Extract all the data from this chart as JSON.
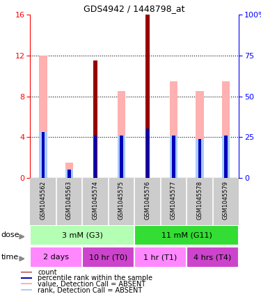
{
  "title": "GDS4942 / 1448798_at",
  "samples": [
    "GSM1045562",
    "GSM1045563",
    "GSM1045574",
    "GSM1045575",
    "GSM1045576",
    "GSM1045577",
    "GSM1045578",
    "GSM1045579"
  ],
  "count_values": [
    0,
    0,
    11.5,
    0,
    16.0,
    0,
    0,
    0
  ],
  "pink_bar_values": [
    12.0,
    1.5,
    0,
    8.5,
    0,
    9.5,
    8.5,
    9.5
  ],
  "blue_rank_values": [
    28.0,
    5.0,
    26.0,
    26.0,
    30.0,
    26.0,
    24.0,
    26.0
  ],
  "light_blue_rank_values": [
    28.0,
    5.0,
    0,
    26.0,
    0,
    26.0,
    24.0,
    26.0
  ],
  "ylim_left": [
    0,
    16
  ],
  "ylim_right": [
    0,
    100
  ],
  "yticks_left": [
    0,
    4,
    8,
    12,
    16
  ],
  "yticks_right": [
    0,
    25,
    50,
    75,
    100
  ],
  "dose_groups": [
    {
      "label": "3 mM (G3)",
      "start": 0,
      "end": 4,
      "color": "#b3ffb3"
    },
    {
      "label": "11 mM (G11)",
      "start": 4,
      "end": 8,
      "color": "#33dd33"
    }
  ],
  "time_groups": [
    {
      "label": "2 days",
      "start": 0,
      "end": 2,
      "color": "#ff88ff"
    },
    {
      "label": "10 hr (T0)",
      "start": 2,
      "end": 4,
      "color": "#cc44cc"
    },
    {
      "label": "1 hr (T1)",
      "start": 4,
      "end": 6,
      "color": "#ff88ff"
    },
    {
      "label": "4 hrs (T4)",
      "start": 6,
      "end": 8,
      "color": "#cc44cc"
    }
  ],
  "count_color": "#990000",
  "pink_color": "#ffb0b0",
  "blue_color": "#0000bb",
  "light_blue_color": "#aaccff",
  "bg_color": "#ffffff",
  "legend_items": [
    {
      "color": "#990000",
      "label": "count"
    },
    {
      "color": "#0000bb",
      "label": "percentile rank within the sample"
    },
    {
      "color": "#ffb0b0",
      "label": "value, Detection Call = ABSENT"
    },
    {
      "color": "#aaccff",
      "label": "rank, Detection Call = ABSENT"
    }
  ]
}
